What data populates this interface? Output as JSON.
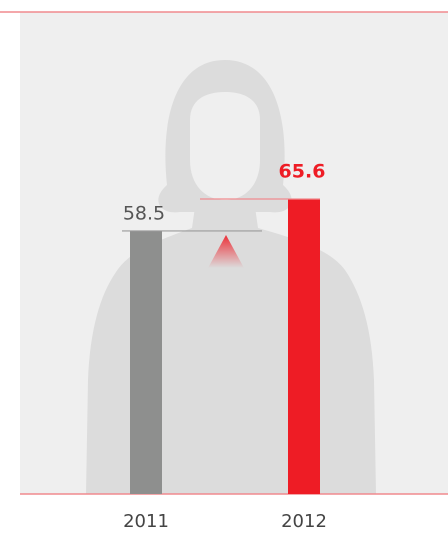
{
  "chart_data": {
    "type": "bar",
    "categories": [
      "2011",
      "2012"
    ],
    "series": [
      {
        "values": [
          58.5,
          65.6
        ],
        "colors": [
          "#8e8f8e",
          "#ee1c25"
        ]
      }
    ]
  }
}
